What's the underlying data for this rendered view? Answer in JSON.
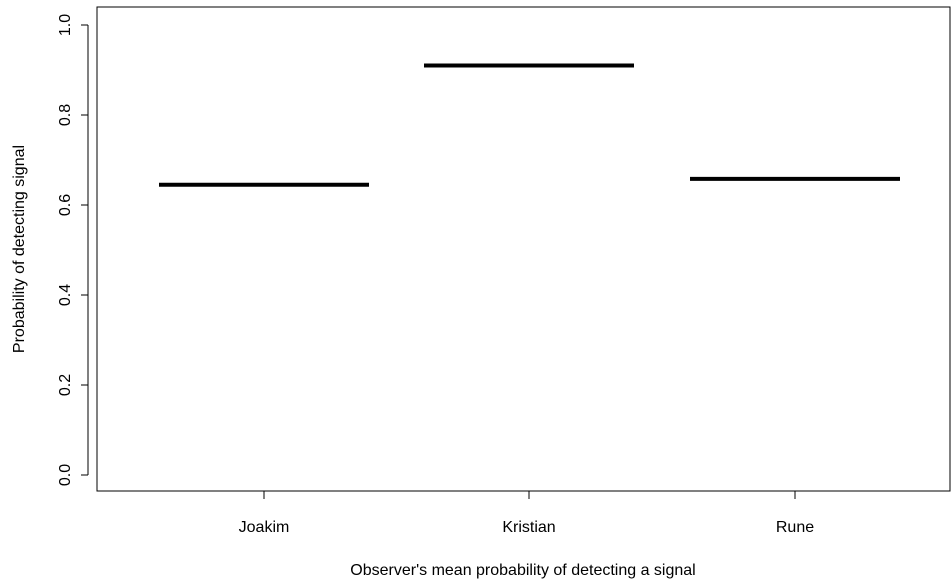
{
  "chart_data": {
    "type": "bar",
    "mark": "horizontal-segment",
    "categories": [
      "Joakim",
      "Kristian",
      "Rune"
    ],
    "values": [
      0.645,
      0.91,
      0.658
    ],
    "xlabel": "Observer's mean probability of detecting a signal",
    "ylabel": "Probability of detecting signal",
    "ylim": [
      0,
      1.0
    ],
    "yticks": [
      "0.0",
      "0.2",
      "0.4",
      "0.6",
      "0.8",
      "1.0"
    ],
    "grid": false,
    "colors": {
      "segment": "#000000",
      "axis": "#000000",
      "background": "#ffffff"
    }
  }
}
